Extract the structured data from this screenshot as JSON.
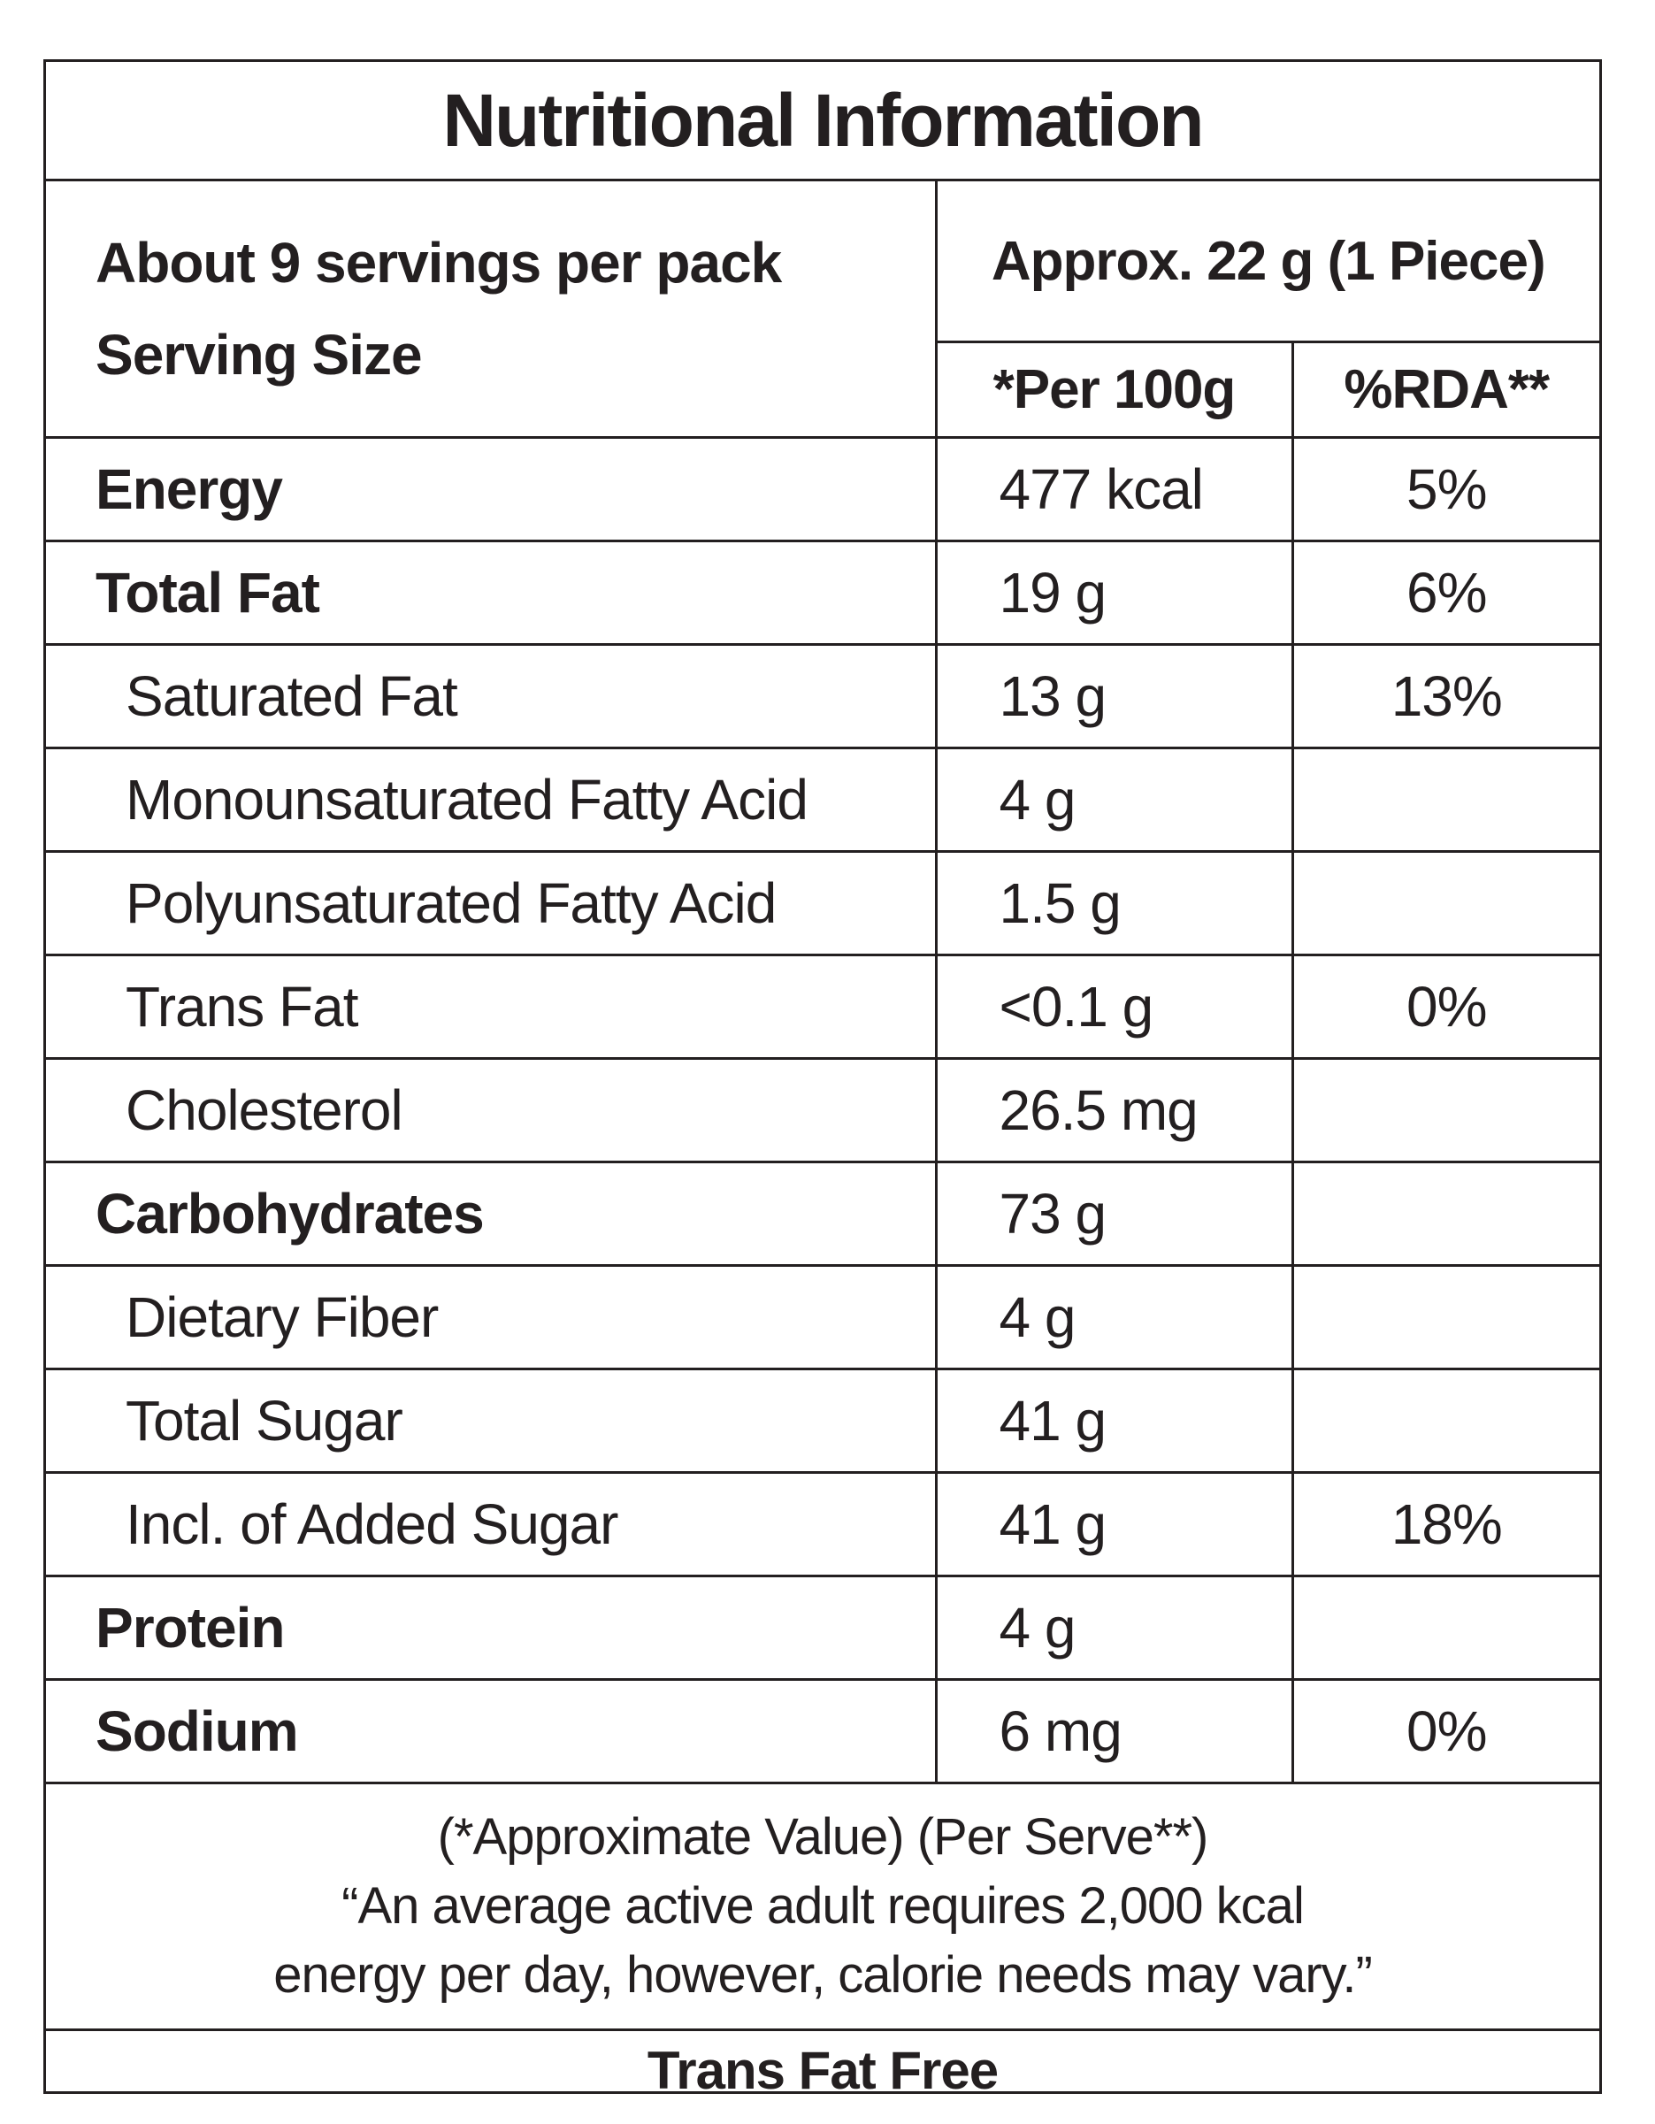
{
  "title": "Nutritional Information",
  "header": {
    "servings_line1": "About 9 servings per pack",
    "servings_line2": "Serving Size",
    "serving_size": "Approx. 22 g (1 Piece)",
    "col_per100g": "*Per 100g",
    "col_rda": "%RDA**"
  },
  "rows": [
    {
      "name": "Energy",
      "value": "477 kcal",
      "rda": "5%"
    },
    {
      "name": "Total Fat",
      "value": "19 g",
      "rda": "6%"
    },
    {
      "name": "Saturated Fat",
      "value": "13 g",
      "rda": "13%"
    },
    {
      "name": "Monounsaturated Fatty Acid",
      "value": "4 g",
      "rda": ""
    },
    {
      "name": "Polyunsaturated Fatty Acid",
      "value": "1.5 g",
      "rda": ""
    },
    {
      "name": "Trans Fat",
      "value": "<0.1 g",
      "rda": "0%"
    },
    {
      "name": "Cholesterol",
      "value": "26.5 mg",
      "rda": ""
    },
    {
      "name": "Carbohydrates",
      "value": "73 g",
      "rda": ""
    },
    {
      "name": "Dietary Fiber",
      "value": "4 g",
      "rda": ""
    },
    {
      "name": "Total Sugar",
      "value": "41 g",
      "rda": ""
    },
    {
      "name": "Incl. of Added Sugar",
      "value": "41 g",
      "rda": "18%"
    },
    {
      "name": "Protein",
      "value": "4 g",
      "rda": ""
    },
    {
      "name": "Sodium",
      "value": "6 mg",
      "rda": "0%"
    }
  ],
  "footnote": {
    "line1": "(*Approximate Value) (Per Serve**)",
    "line2": "“An average active adult requires 2,000 kcal",
    "line3": "energy per day, however, calorie needs may vary.”"
  },
  "claim": "Trans Fat Free"
}
